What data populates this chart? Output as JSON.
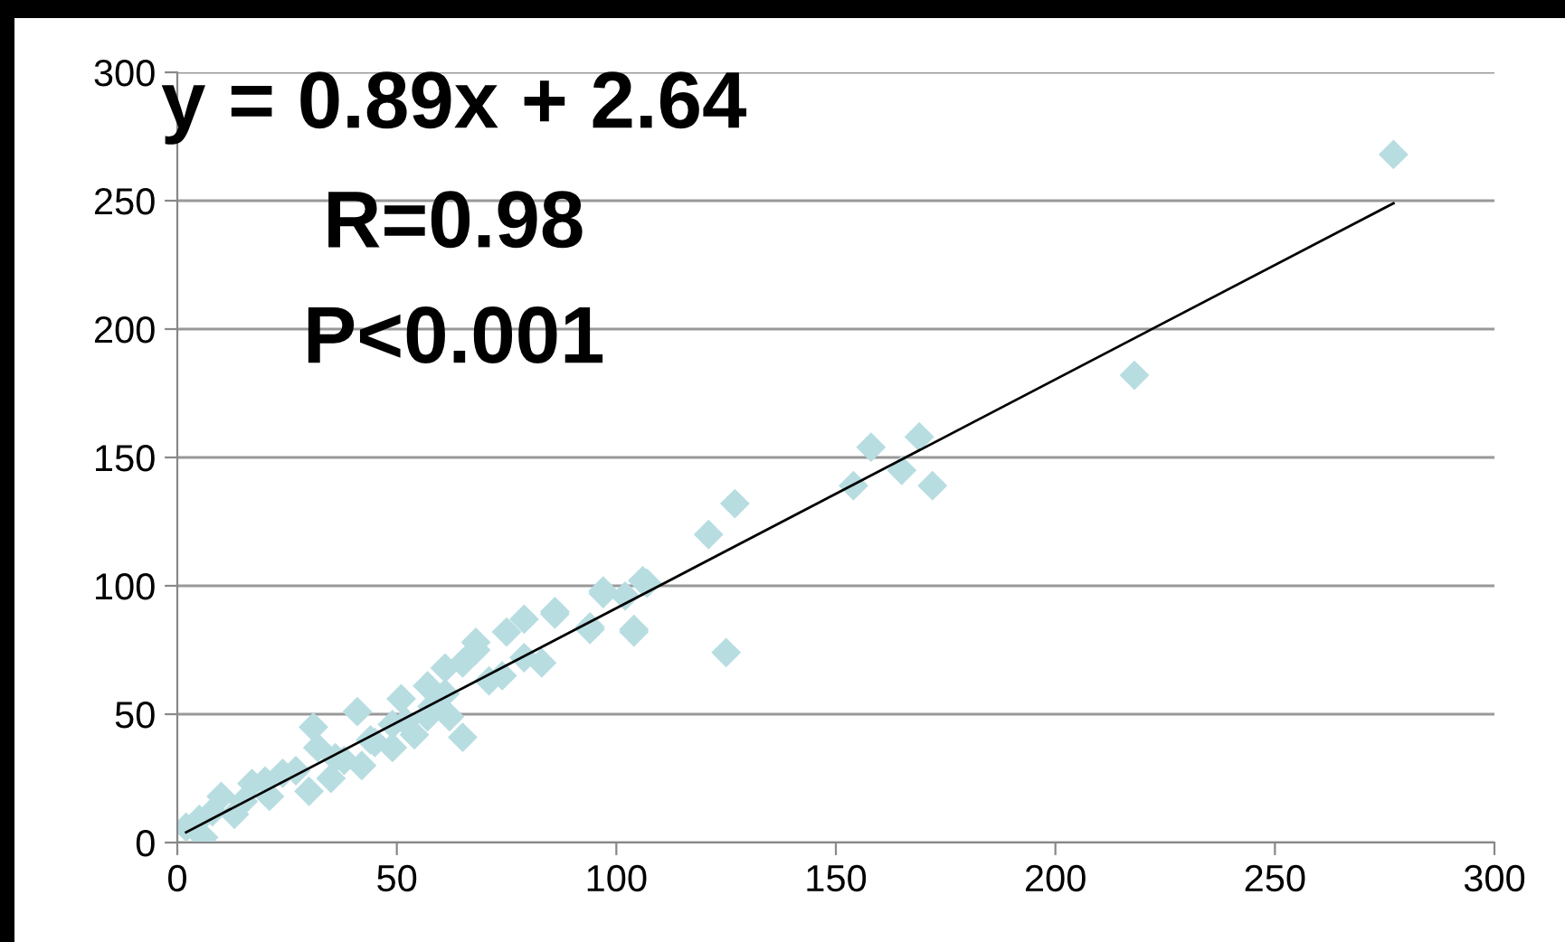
{
  "chart_data": {
    "type": "scatter",
    "grid": "y",
    "annotations": [
      "y = 0.89x + 2.64",
      "R=0.98",
      "P<0.001"
    ],
    "xlim": [
      0,
      300
    ],
    "xticks": [
      0,
      50,
      100,
      150,
      200,
      250,
      300
    ],
    "ylim": [
      0,
      300
    ],
    "yticks": [
      0,
      50,
      100,
      150,
      200,
      250,
      300
    ],
    "series": [
      {
        "marker": "diamond",
        "color": "#b7dde1",
        "x": [
          277,
          218,
          154,
          158,
          165,
          169,
          172,
          121,
          127,
          125,
          104,
          106,
          94,
          102,
          97,
          86,
          107,
          97,
          94,
          104,
          86,
          83,
          79,
          75,
          68,
          65,
          61,
          57,
          51,
          41,
          31,
          32,
          38,
          45,
          54,
          62,
          71,
          79,
          24,
          17,
          10,
          5,
          2,
          6,
          21,
          30,
          13,
          35,
          42,
          49,
          57,
          49,
          61,
          65,
          68,
          74,
          27,
          20,
          15,
          8,
          36,
          44,
          52,
          58
        ],
        "values": [
          268,
          182,
          139,
          154,
          145,
          158,
          139,
          120,
          132,
          74,
          82,
          102,
          83,
          96,
          97,
          89,
          101,
          98,
          84,
          83,
          90,
          70,
          87,
          82,
          78,
          41,
          68,
          61,
          56,
          51,
          45,
          37,
          32,
          39,
          42,
          49,
          63,
          72,
          27,
          23,
          18,
          9,
          6,
          2,
          18,
          20,
          11,
          25,
          30,
          37,
          49,
          46,
          58,
          70,
          75,
          65,
          28,
          24,
          16,
          12,
          33,
          40,
          47,
          53
        ]
      },
      {
        "type": "line",
        "color": "#000000",
        "x": [
          2,
          277
        ],
        "values": [
          4,
          249
        ]
      }
    ]
  }
}
